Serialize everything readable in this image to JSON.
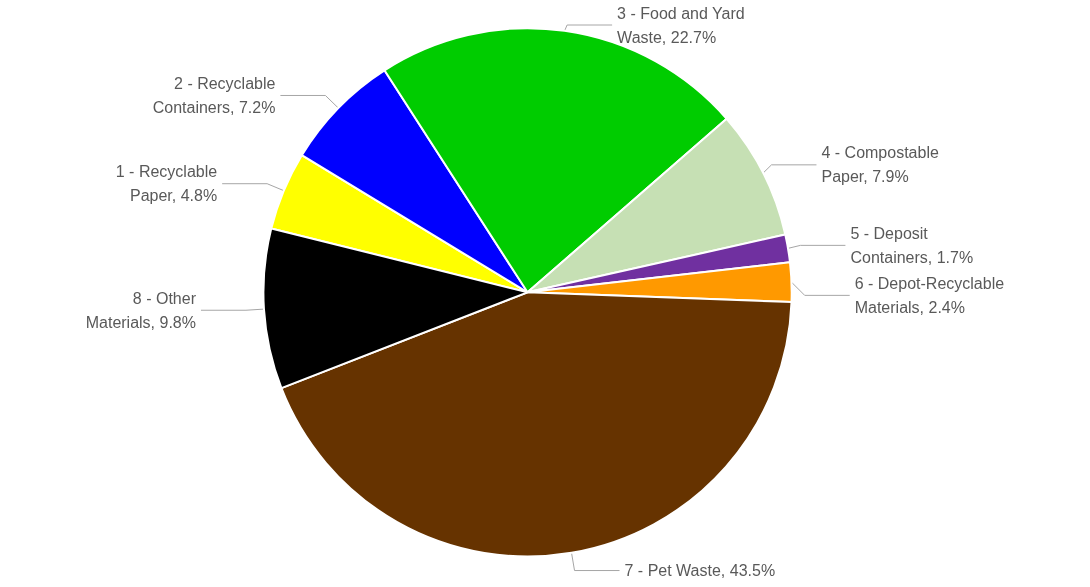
{
  "chart_data": {
    "type": "pie",
    "categories": [
      "1 - Recyclable Paper",
      "2 - Recyclable Containers",
      "3 - Food and Yard Waste",
      "4 - Compostable Paper",
      "5 - Deposit Containers",
      "6 - Depot-Recyclable Materials",
      "7 - Pet Waste",
      "8 - Other Materials"
    ],
    "values": [
      4.8,
      7.2,
      22.7,
      7.9,
      1.7,
      2.4,
      43.5,
      9.8
    ],
    "value_labels": [
      "4.8%",
      "7.2%",
      "22.7%",
      "7.9%",
      "1.7%",
      "2.4%",
      "43.5%",
      "9.8%"
    ],
    "colors": [
      "#ffff00",
      "#0000ff",
      "#00cc00",
      "#c6e0b4",
      "#7030a0",
      "#ff9900",
      "#663300",
      "#000000"
    ],
    "legend": false
  }
}
